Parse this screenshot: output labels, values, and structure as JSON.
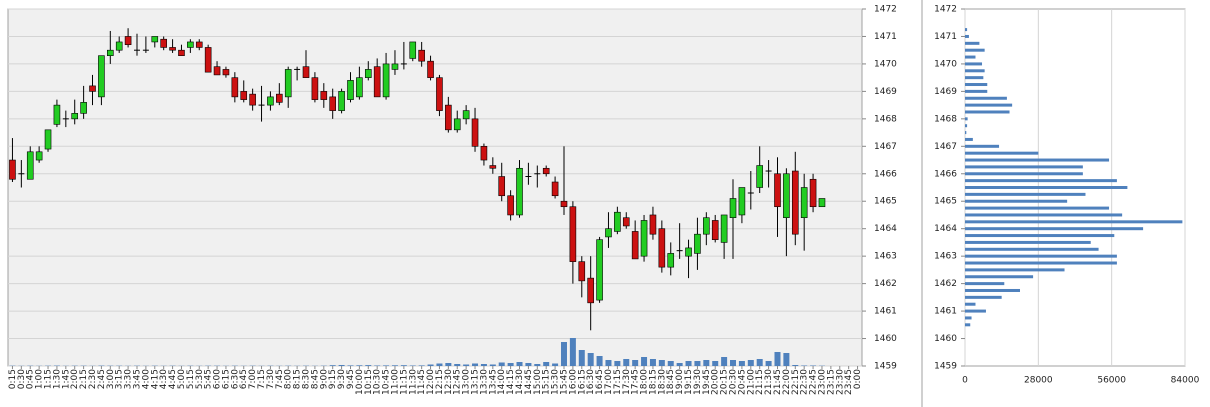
{
  "chart_data": [
    {
      "type": "candlestick",
      "categories": [
        "0:15",
        "0:30",
        "0:45",
        "1:00",
        "1:15",
        "1:30",
        "1:45",
        "2:00",
        "2:15",
        "2:30",
        "2:45",
        "3:00",
        "3:15",
        "3:30",
        "3:45",
        "4:00",
        "4:15",
        "4:30",
        "4:45",
        "5:00",
        "5:15",
        "5:30",
        "5:45",
        "6:00",
        "6:15",
        "6:30",
        "6:45",
        "7:00",
        "7:15",
        "7:30",
        "7:45",
        "8:00",
        "8:15",
        "8:30",
        "8:45",
        "9:00",
        "9:15",
        "9:30",
        "9:45",
        "10:00",
        "10:15",
        "10:30",
        "10:45",
        "11:00",
        "11:15",
        "11:30",
        "11:45",
        "12:00",
        "12:15",
        "12:30",
        "12:45",
        "13:00",
        "13:15",
        "13:30",
        "13:45",
        "14:00",
        "14:15",
        "14:30",
        "14:45",
        "15:00",
        "15:15",
        "15:30",
        "15:45",
        "16:00",
        "16:15",
        "16:30",
        "16:45",
        "17:00",
        "17:15",
        "17:30",
        "17:45",
        "18:00",
        "18:15",
        "18:30",
        "18:45",
        "19:00",
        "19:15",
        "19:30",
        "19:45",
        "20:00",
        "20:15",
        "20:30",
        "20:45",
        "21:00",
        "21:15",
        "21:30",
        "21:45",
        "22:00",
        "22:15",
        "22:30",
        "22:45",
        "23:00",
        "23:15",
        "23:30",
        "23:45",
        "0:00"
      ],
      "open": [
        1466.5,
        1466.0,
        1465.8,
        1466.5,
        1466.9,
        1467.8,
        1468.0,
        1468.0,
        1468.2,
        1469.2,
        1468.8,
        1470.3,
        1470.5,
        1471.0,
        1470.5,
        1470.5,
        1470.8,
        1470.9,
        1470.6,
        1470.5,
        1470.6,
        1470.8,
        1470.6,
        1469.9,
        1469.8,
        1469.5,
        1469.0,
        1468.9,
        1468.5,
        1468.5,
        1468.9,
        1468.8,
        1469.8,
        1469.9,
        1469.5,
        1469.0,
        1468.8,
        1468.3,
        1468.7,
        1468.8,
        1469.5,
        1469.9,
        1468.8,
        1469.8,
        1470.0,
        1470.2,
        1470.5,
        1470.1,
        1469.5,
        1468.5,
        1467.6,
        1468.0,
        1468.0,
        1467.0,
        1466.3,
        1465.9,
        1465.2,
        1464.5,
        1465.9,
        1466.0,
        1466.2,
        1465.7,
        1465.0,
        1464.8,
        1462.8,
        1462.2,
        1461.4,
        1463.7,
        1463.9,
        1464.4,
        1463.9,
        1463.0,
        1464.5,
        1464.0,
        1462.6,
        1463.2,
        1463.0,
        1463.1,
        1463.8,
        1464.3,
        1463.5,
        1464.4,
        1464.5,
        1465.3,
        1465.5,
        1466.1,
        1466.0,
        1464.4,
        1466.1,
        1464.4,
        1465.8,
        1464.8,
        null,
        null,
        null,
        null
      ],
      "high": [
        1467.3,
        1466.5,
        1467.0,
        1467.0,
        1467.6,
        1468.7,
        1468.3,
        1468.7,
        1469.2,
        1469.6,
        1470.3,
        1471.2,
        1471.0,
        1471.3,
        1471.1,
        1471.0,
        1471.0,
        1471.0,
        1470.9,
        1470.7,
        1470.9,
        1470.9,
        1470.7,
        1470.1,
        1469.9,
        1469.7,
        1469.4,
        1469.1,
        1469.2,
        1469.0,
        1469.3,
        1469.9,
        1469.9,
        1470.5,
        1469.7,
        1469.3,
        1469.1,
        1469.1,
        1469.7,
        1469.9,
        1470.1,
        1470.2,
        1470.4,
        1470.5,
        1470.8,
        1470.8,
        1470.8,
        1470.3,
        1469.6,
        1468.8,
        1468.3,
        1468.5,
        1468.4,
        1467.1,
        1466.6,
        1466.4,
        1465.4,
        1466.5,
        1466.4,
        1466.3,
        1466.3,
        1465.9,
        1467.0,
        1465.0,
        1463.0,
        1463.0,
        1463.7,
        1464.6,
        1464.8,
        1464.6,
        1464.3,
        1464.5,
        1464.8,
        1464.3,
        1463.5,
        1464.2,
        1463.6,
        1464.4,
        1464.6,
        1464.5,
        1464.5,
        1465.8,
        1465.5,
        1466.1,
        1467.0,
        1466.5,
        1466.6,
        1466.2,
        1466.8,
        1466.0,
        1466.0,
        1465.1,
        null,
        null,
        null,
        null
      ],
      "low": [
        1465.7,
        1465.5,
        1465.8,
        1466.4,
        1466.8,
        1467.7,
        1467.7,
        1467.8,
        1468.0,
        1468.5,
        1468.5,
        1470.0,
        1470.4,
        1470.6,
        1470.3,
        1470.4,
        1470.6,
        1470.5,
        1470.4,
        1470.3,
        1470.4,
        1470.5,
        1469.7,
        1469.6,
        1469.5,
        1468.6,
        1468.6,
        1468.3,
        1467.9,
        1468.3,
        1468.5,
        1468.4,
        1469.4,
        1469.5,
        1468.6,
        1468.4,
        1468.0,
        1468.2,
        1468.6,
        1468.7,
        1469.4,
        1468.8,
        1468.7,
        1469.6,
        1469.8,
        1470.1,
        1469.9,
        1469.4,
        1468.1,
        1467.5,
        1467.5,
        1467.8,
        1466.8,
        1466.3,
        1466.0,
        1465.0,
        1464.3,
        1464.4,
        1465.6,
        1465.5,
        1465.9,
        1465.1,
        1464.5,
        1462.0,
        1461.5,
        1460.3,
        1461.3,
        1463.3,
        1463.8,
        1464.0,
        1462.9,
        1462.8,
        1463.6,
        1462.4,
        1462.3,
        1462.9,
        1462.2,
        1462.5,
        1463.4,
        1463.5,
        1462.9,
        1462.9,
        1464.2,
        1464.7,
        1465.3,
        1465.5,
        1463.7,
        1463.0,
        1463.4,
        1463.2,
        1464.6,
        1464.8,
        null,
        null,
        null,
        null
      ],
      "close": [
        1465.8,
        1466.0,
        1466.8,
        1466.8,
        1467.6,
        1468.5,
        1468.0,
        1468.2,
        1468.6,
        1469.0,
        1470.3,
        1470.5,
        1470.8,
        1470.7,
        1470.5,
        1470.5,
        1471.0,
        1470.6,
        1470.5,
        1470.3,
        1470.8,
        1470.6,
        1469.7,
        1469.6,
        1469.6,
        1468.8,
        1468.7,
        1468.5,
        1468.5,
        1468.8,
        1468.6,
        1469.8,
        1469.8,
        1469.5,
        1468.7,
        1468.7,
        1468.3,
        1469.0,
        1469.4,
        1469.5,
        1469.8,
        1468.8,
        1470.0,
        1470.0,
        1470.0,
        1470.8,
        1470.1,
        1469.5,
        1468.3,
        1467.6,
        1468.0,
        1468.3,
        1467.0,
        1466.5,
        1466.2,
        1465.2,
        1464.5,
        1466.2,
        1465.9,
        1466.0,
        1466.0,
        1465.2,
        1464.8,
        1462.8,
        1462.1,
        1461.3,
        1463.6,
        1464.0,
        1464.6,
        1464.1,
        1462.9,
        1464.3,
        1463.8,
        1462.6,
        1463.1,
        1463.2,
        1463.3,
        1463.8,
        1464.4,
        1463.6,
        1464.5,
        1465.1,
        1465.5,
        1465.3,
        1466.3,
        1466.1,
        1464.8,
        1466.0,
        1463.8,
        1465.5,
        1464.8,
        1465.1,
        null,
        null,
        null,
        null
      ],
      "volume": [
        300,
        200,
        300,
        200,
        300,
        400,
        200,
        300,
        300,
        200,
        400,
        300,
        300,
        200,
        300,
        200,
        300,
        200,
        300,
        200,
        300,
        200,
        300,
        300,
        200,
        300,
        200,
        300,
        200,
        300,
        200,
        300,
        200,
        300,
        200,
        300,
        800,
        1000,
        600,
        700,
        900,
        500,
        600,
        700,
        800,
        500,
        600,
        1500,
        2500,
        3000,
        2000,
        1500,
        2500,
        2000,
        1500,
        3500,
        3000,
        4000,
        3000,
        2000,
        4000,
        2500,
        24000,
        28000,
        16000,
        13000,
        10000,
        6000,
        5000,
        7000,
        6000,
        9000,
        7000,
        6000,
        5000,
        3000,
        5000,
        5000,
        6000,
        5000,
        9000,
        6000,
        5000,
        6000,
        7000,
        5000,
        14000,
        13000,
        1000,
        500,
        500,
        300,
        null,
        null,
        null,
        null
      ],
      "ylim": [
        1459,
        1472
      ],
      "yticks": [
        1459,
        1460,
        1461,
        1462,
        1463,
        1464,
        1465,
        1466,
        1467,
        1468,
        1469,
        1470,
        1471,
        1472
      ],
      "up_color": "#22cc22",
      "down_color": "#cc1111",
      "volume_color": "#4f81bd",
      "grid": true
    },
    {
      "type": "barh",
      "levels": [
        1471.25,
        1471.0,
        1470.75,
        1470.5,
        1470.25,
        1470.0,
        1469.75,
        1469.5,
        1469.25,
        1469.0,
        1468.75,
        1468.5,
        1468.25,
        1468.0,
        1467.75,
        1467.5,
        1467.25,
        1467.0,
        1466.75,
        1466.5,
        1466.25,
        1466.0,
        1465.75,
        1465.5,
        1465.25,
        1465.0,
        1464.75,
        1464.5,
        1464.25,
        1464.0,
        1463.75,
        1463.5,
        1463.25,
        1463.0,
        1462.75,
        1462.5,
        1462.25,
        1462.0,
        1461.75,
        1461.5,
        1461.25,
        1461.0,
        1460.75,
        1460.5
      ],
      "values": [
        800,
        1500,
        5500,
        7500,
        4000,
        6500,
        7500,
        7000,
        8500,
        8500,
        16000,
        18000,
        17000,
        1000,
        800,
        500,
        3000,
        13000,
        28000,
        55000,
        45000,
        45000,
        58000,
        62000,
        46000,
        39000,
        55000,
        60000,
        83000,
        68000,
        57000,
        48000,
        51000,
        58000,
        58000,
        38000,
        26000,
        15000,
        21000,
        14000,
        4000,
        8000,
        2500,
        2000
      ],
      "xlim": [
        0,
        84000
      ],
      "xticks": [
        0,
        28000,
        56000,
        84000
      ],
      "ylim": [
        1459,
        1472
      ],
      "yticks": [
        1459,
        1460,
        1461,
        1462,
        1463,
        1464,
        1465,
        1466,
        1467,
        1468,
        1469,
        1470,
        1471,
        1472
      ],
      "color": "#4f81bd",
      "grid": true
    }
  ]
}
